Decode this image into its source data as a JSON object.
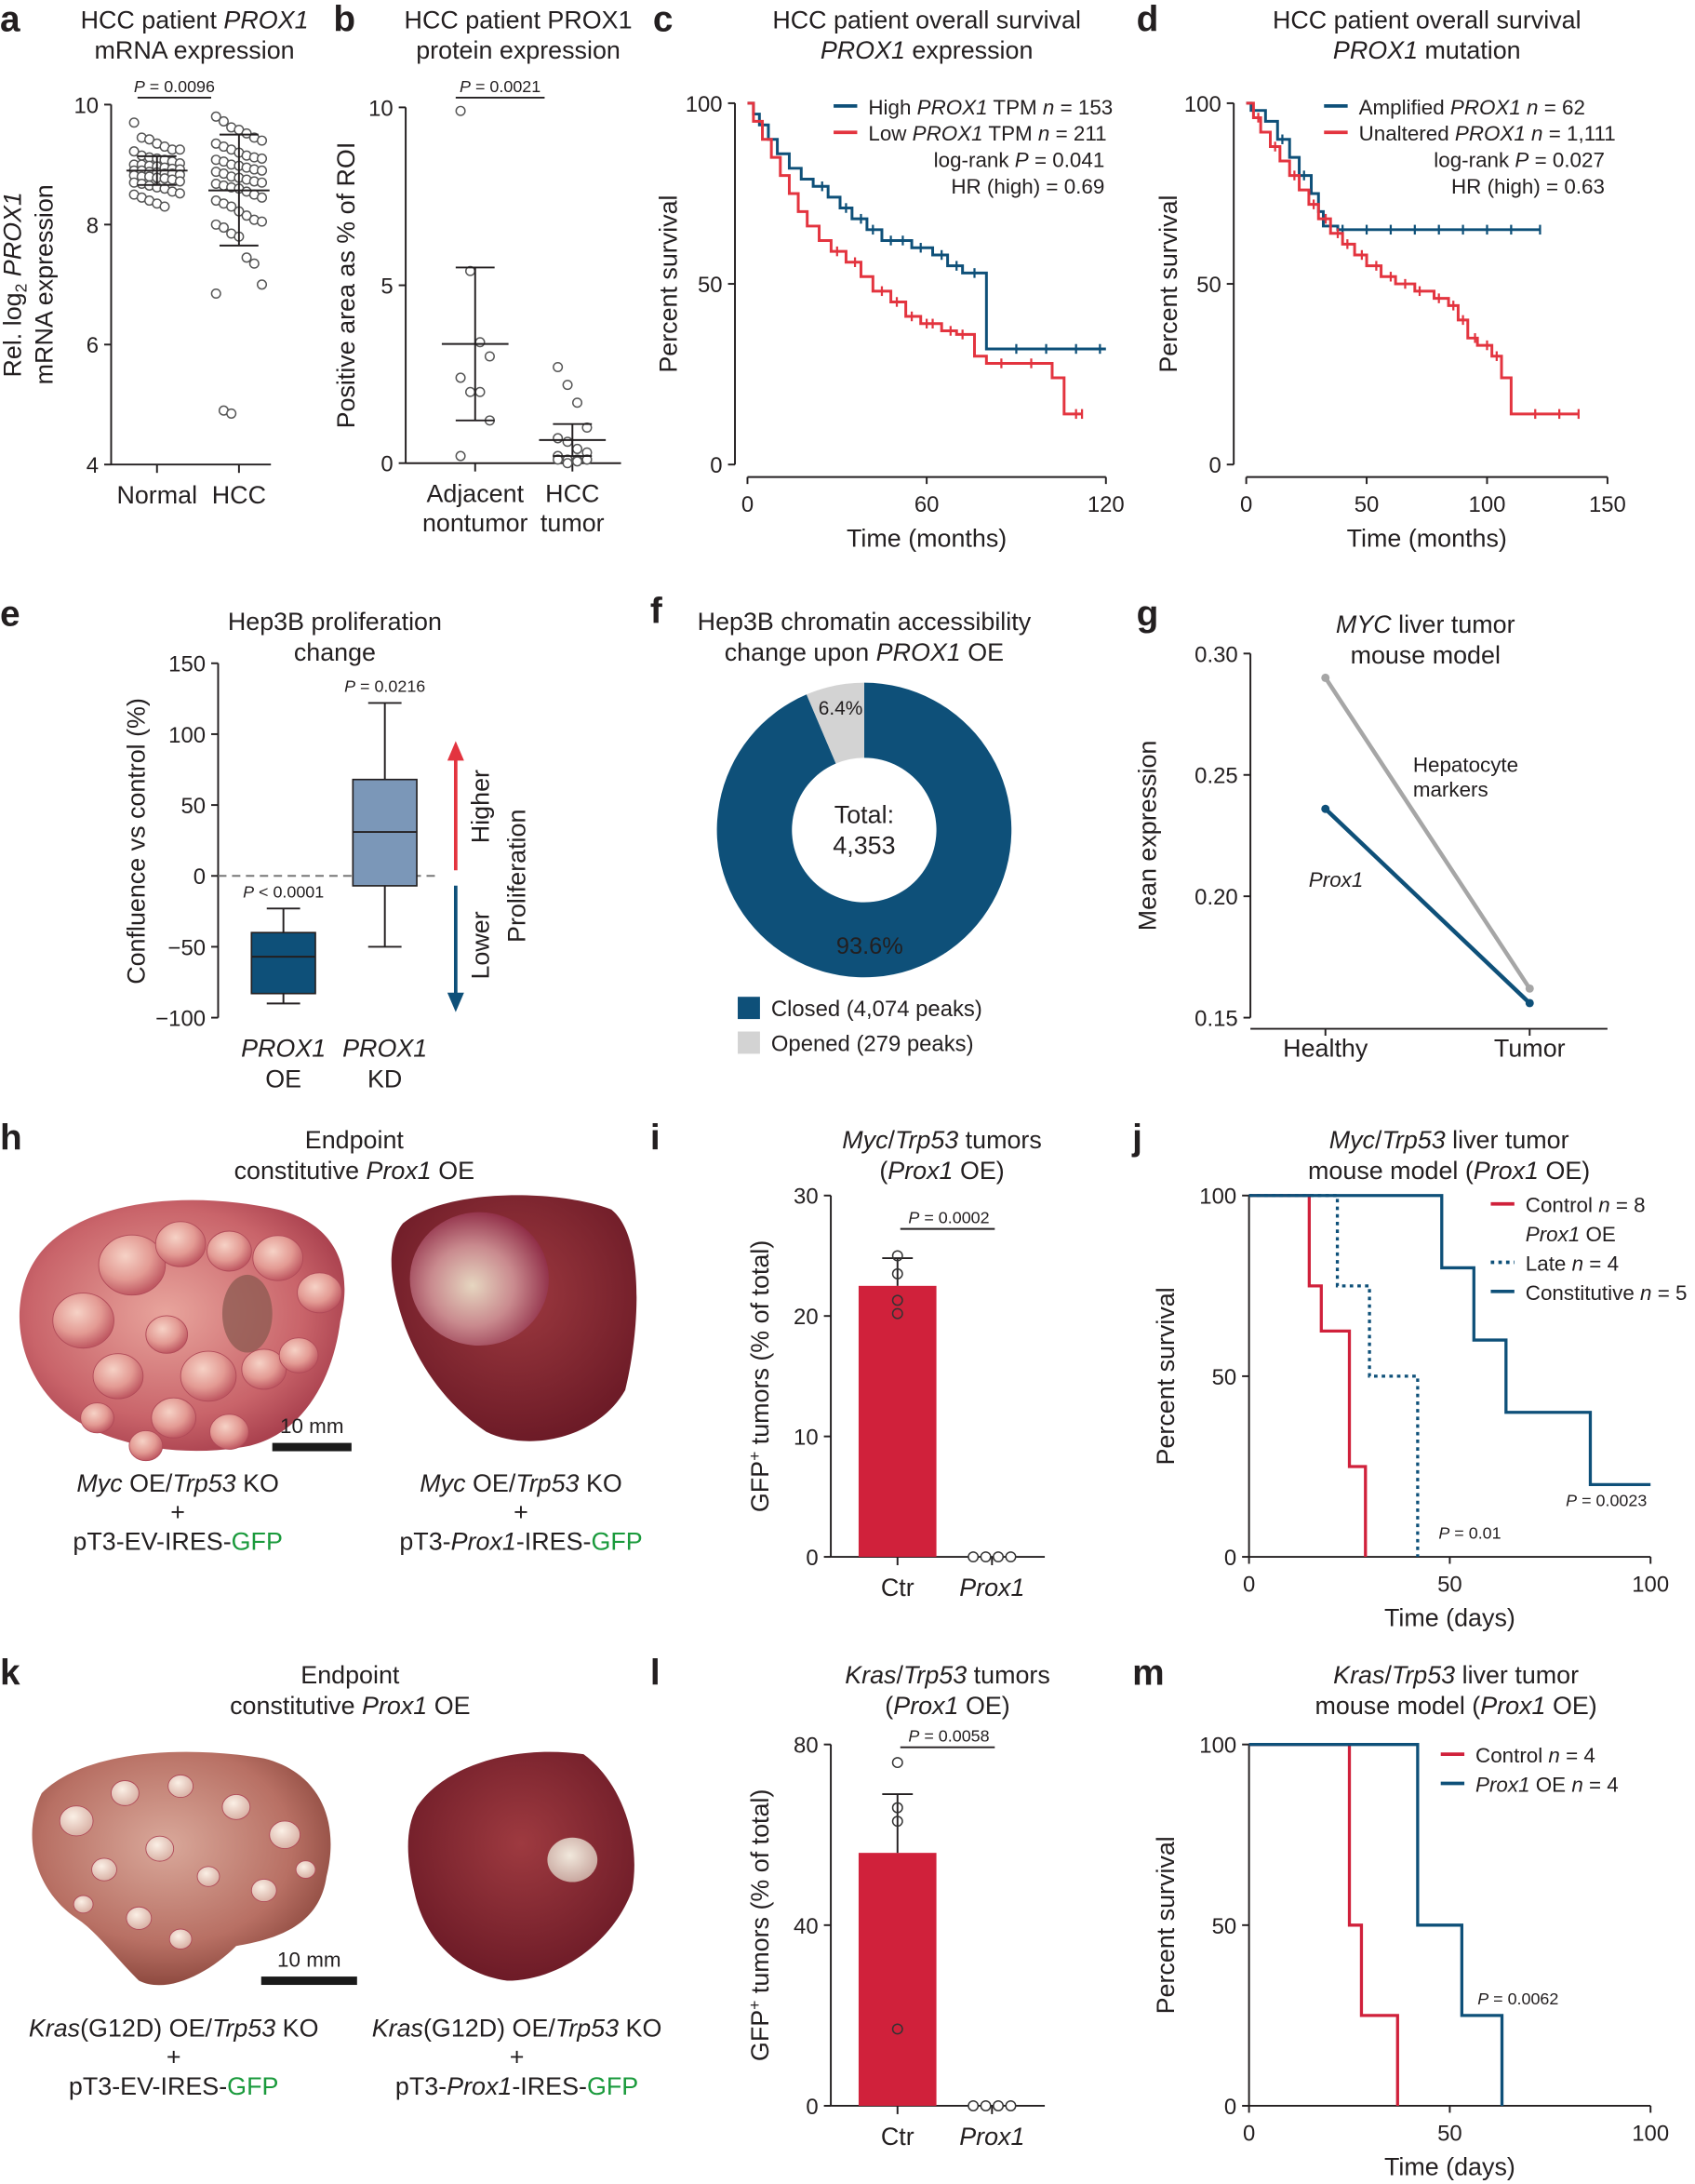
{
  "colors": {
    "navy": "#0e5079",
    "red_c": "#e3343f",
    "red": "#d0213b",
    "kd_box": "#7b97b8",
    "grey_line": "#a6a6a6",
    "opened": "#d3d3d3",
    "gfp_green": "#1a9a3c"
  },
  "panels": {
    "h": {
      "letter": "h",
      "title": [
        "Endpoint",
        "constitutive *Prox1* OE"
      ],
      "scale_bar": "10 mm",
      "left_label": [
        "*Myc* OE/*Trp53* KO",
        "+",
        "pT3-EV-IRES-{GFP}"
      ],
      "right_label": [
        "*Myc* OE/*Trp53* KO",
        "+",
        "pT3-*Prox1*-IRES-{GFP}"
      ]
    },
    "k": {
      "letter": "k",
      "title": [
        "Endpoint",
        "constitutive *Prox1* OE"
      ],
      "scale_bar": "10 mm",
      "left_label": [
        "*Kras*(G12D) OE/*Trp53* KO",
        "+",
        "pT3-EV-IRES-{GFP}"
      ],
      "right_label": [
        "*Kras*(G12D) OE/*Trp53* KO",
        "+",
        "pT3-*Prox1*-IRES-{GFP}"
      ]
    }
  },
  "chart_data": [
    {
      "panel": "a",
      "type": "scatter",
      "title": [
        "HCC patient *PROX1*",
        "mRNA expression"
      ],
      "ylabel": [
        "Rel. log~2~ *PROX1*",
        "mRNA expression"
      ],
      "ylim": [
        4,
        10
      ],
      "yticks": [
        4,
        6,
        8,
        10
      ],
      "categories": [
        "Normal",
        "HCC"
      ],
      "pvalue": "*P* = 0.0096",
      "groups": [
        {
          "name": "Normal",
          "mean": 8.9,
          "sd": [
            8.66,
            9.14
          ],
          "values": [
            9.7,
            9.45,
            9.42,
            9.35,
            9.3,
            9.25,
            9.25,
            9.22,
            9.15,
            9.12,
            9.1,
            9.08,
            9.05,
            9.02,
            9.0,
            9.0,
            8.98,
            8.97,
            8.95,
            8.93,
            8.92,
            8.9,
            8.9,
            8.88,
            8.87,
            8.85,
            8.85,
            8.83,
            8.82,
            8.8,
            8.8,
            8.78,
            8.77,
            8.75,
            8.72,
            8.7,
            8.68,
            8.65,
            8.62,
            8.6,
            8.55,
            8.52,
            8.5,
            8.45,
            8.4,
            8.35,
            8.3
          ]
        },
        {
          "name": "HCC",
          "mean": 8.57,
          "sd": [
            7.65,
            9.5
          ],
          "values": [
            9.8,
            9.72,
            9.62,
            9.58,
            9.52,
            9.45,
            9.4,
            9.35,
            9.3,
            9.25,
            9.2,
            9.15,
            9.12,
            9.1,
            9.08,
            9.05,
            9.0,
            8.98,
            8.95,
            8.92,
            8.9,
            8.88,
            8.85,
            8.8,
            8.78,
            8.75,
            8.72,
            8.7,
            8.68,
            8.65,
            8.62,
            8.6,
            8.55,
            8.5,
            8.45,
            8.4,
            8.35,
            8.3,
            8.22,
            8.15,
            8.08,
            8.05,
            8.0,
            7.95,
            7.85,
            7.8,
            7.45,
            7.35,
            7.0,
            6.85,
            4.9,
            4.85
          ]
        }
      ]
    },
    {
      "panel": "b",
      "type": "scatter",
      "title": [
        "HCC patient PROX1",
        "protein expression"
      ],
      "ylabel": [
        "Positive area as % of ROI"
      ],
      "ylim": [
        0,
        10
      ],
      "yticks": [
        0,
        5,
        10
      ],
      "categories": [
        [
          "Adjacent",
          "nontumor"
        ],
        [
          "HCC",
          "tumor"
        ]
      ],
      "pvalue": "*P* = 0.0021",
      "groups": [
        {
          "name": "Adjacent nontumor",
          "mean": 3.35,
          "sd": [
            1.2,
            5.5
          ],
          "values": [
            9.9,
            5.4,
            3.4,
            3.0,
            2.4,
            2.0,
            2.0,
            1.2,
            0.2
          ]
        },
        {
          "name": "HCC tumor",
          "mean": 0.65,
          "sd": [
            0.2,
            1.1
          ],
          "values": [
            2.7,
            2.2,
            1.7,
            1.0,
            0.7,
            0.6,
            0.4,
            0.3,
            0.2,
            0.1,
            0.1,
            0.1,
            0.1,
            0.0,
            0.05,
            0.1
          ]
        }
      ]
    },
    {
      "panel": "c",
      "type": "line",
      "subtype": "kaplan-meier",
      "title": [
        "HCC patient overall survival",
        "*PROX1* expression"
      ],
      "xlabel": "Time (months)",
      "ylabel": "Percent survival",
      "xlim": [
        0,
        120
      ],
      "ylim": [
        0,
        100
      ],
      "xticks": [
        0,
        60,
        120
      ],
      "yticks": [
        0,
        50,
        100
      ],
      "stats": [
        "log-rank *P* = 0.041",
        "HR (high) = 0.69"
      ],
      "series": [
        {
          "name": "High *PROX1* TPM *n* = 153",
          "color": "#0e5079",
          "end": 120,
          "steps": [
            [
              2,
              97
            ],
            [
              4,
              94
            ],
            [
              7,
              90
            ],
            [
              10,
              86
            ],
            [
              14,
              82
            ],
            [
              18,
              79
            ],
            [
              22,
              77
            ],
            [
              27,
              74
            ],
            [
              31,
              71
            ],
            [
              35,
              68
            ],
            [
              40,
              65
            ],
            [
              45,
              62
            ],
            [
              55,
              60
            ],
            [
              62,
              58
            ],
            [
              67,
              55
            ],
            [
              72,
              53
            ],
            [
              80,
              32
            ]
          ],
          "censored": [
            25,
            33,
            38,
            42,
            48,
            52,
            58,
            65,
            70,
            76,
            90,
            100,
            110,
            118
          ]
        },
        {
          "name": "Low *PROX1* TPM *n* = 211",
          "color": "#e3343f",
          "end": 112,
          "steps": [
            [
              2,
              95
            ],
            [
              5,
              90
            ],
            [
              8,
              85
            ],
            [
              11,
              80
            ],
            [
              14,
              75
            ],
            [
              17,
              70
            ],
            [
              20,
              66
            ],
            [
              24,
              62
            ],
            [
              28,
              59
            ],
            [
              33,
              56
            ],
            [
              38,
              52
            ],
            [
              42,
              48
            ],
            [
              48,
              45
            ],
            [
              53,
              41
            ],
            [
              58,
              39
            ],
            [
              65,
              37
            ],
            [
              70,
              36
            ],
            [
              76,
              30
            ],
            [
              80,
              28
            ],
            [
              102,
              24
            ],
            [
              106,
              14
            ]
          ],
          "censored": [
            30,
            36,
            45,
            50,
            55,
            60,
            62,
            68,
            72,
            85,
            95,
            110,
            112
          ]
        }
      ]
    },
    {
      "panel": "d",
      "type": "line",
      "subtype": "kaplan-meier",
      "title": [
        "HCC patient overall survival",
        "*PROX1* mutation"
      ],
      "xlabel": "Time (months)",
      "ylabel": "Percent survival",
      "xlim": [
        0,
        150
      ],
      "ylim": [
        0,
        100
      ],
      "xticks": [
        0,
        50,
        100,
        150
      ],
      "yticks": [
        0,
        50,
        100
      ],
      "stats": [
        "log-rank *P* = 0.027",
        "HR (high) = 0.63"
      ],
      "series": [
        {
          "name": "Amplified *PROX1* *n* = 62",
          "color": "#0e5079",
          "end": 122,
          "steps": [
            [
              2,
              98
            ],
            [
              8,
              95
            ],
            [
              13,
              90
            ],
            [
              18,
              85
            ],
            [
              22,
              80
            ],
            [
              27,
              75
            ],
            [
              30,
              70
            ],
            [
              32,
              66
            ],
            [
              38,
              65
            ]
          ],
          "censored": [
            15,
            24,
            40,
            50,
            60,
            70,
            80,
            90,
            100,
            110,
            122
          ]
        },
        {
          "name": "Unaltered *PROX1* *n* = 1,111",
          "color": "#e3343f",
          "end": 138,
          "steps": [
            [
              3,
              96
            ],
            [
              6,
              92
            ],
            [
              10,
              88
            ],
            [
              14,
              84
            ],
            [
              18,
              80
            ],
            [
              22,
              76
            ],
            [
              26,
              72
            ],
            [
              30,
              68
            ],
            [
              35,
              64
            ],
            [
              40,
              61
            ],
            [
              45,
              58
            ],
            [
              50,
              55
            ],
            [
              56,
              52
            ],
            [
              62,
              50
            ],
            [
              70,
              48
            ],
            [
              78,
              46
            ],
            [
              84,
              44
            ],
            [
              88,
              40
            ],
            [
              92,
              35
            ],
            [
              96,
              33
            ],
            [
              102,
              30
            ],
            [
              106,
              24
            ],
            [
              110,
              14
            ]
          ],
          "censored": [
            5,
            12,
            20,
            28,
            33,
            38,
            42,
            48,
            54,
            60,
            66,
            72,
            80,
            86,
            90,
            95,
            100,
            104,
            120,
            130,
            138
          ]
        }
      ]
    },
    {
      "panel": "e",
      "type": "bar",
      "subtype": "boxplot",
      "title": [
        "Hep3B proliferation",
        "change"
      ],
      "ylabel": "Confluence vs control (%)",
      "ylim": [
        -100,
        150
      ],
      "yticks": [
        -100,
        -50,
        0,
        50,
        100,
        150
      ],
      "arrows": {
        "up": "Higher",
        "down": "Lower",
        "axis": "Proliferation"
      },
      "boxes": [
        {
          "label": [
            "*PROX1*",
            "OE"
          ],
          "min": -90,
          "q1": -83,
          "median": -57,
          "q3": -40,
          "max": -23,
          "pvalue": "*P* < 0.0001",
          "color": "#0e5079"
        },
        {
          "label": [
            "*PROX1*",
            "KD"
          ],
          "min": -50,
          "q1": -7,
          "median": 31,
          "q3": 68,
          "max": 122,
          "pvalue": "*P* = 0.0216",
          "color": "#7b97b8"
        }
      ]
    },
    {
      "panel": "f",
      "type": "pie",
      "subtype": "donut",
      "title": [
        "Hep3B chromatin accessibility",
        "change upon *PROX1* OE"
      ],
      "center": [
        "Total:",
        "4,353"
      ],
      "slices": [
        {
          "label": "Closed (4,074 peaks)",
          "value": 93.6,
          "text": "93.6%",
          "color": "#0e5079"
        },
        {
          "label": "Opened (279 peaks)",
          "value": 6.4,
          "text": "6.4%",
          "color": "#d3d3d3"
        }
      ]
    },
    {
      "panel": "g",
      "type": "line",
      "title": [
        "*MYC* liver tumor",
        "mouse model"
      ],
      "ylabel": "Mean expression",
      "ylim": [
        0.15,
        0.3
      ],
      "yticks": [
        0.15,
        0.2,
        0.25,
        0.3
      ],
      "categories": [
        "Healthy",
        "Tumor"
      ],
      "series": [
        {
          "name": [
            "Hepatocyte",
            "markers"
          ],
          "values": [
            0.29,
            0.162
          ],
          "color": "#a6a6a6"
        },
        {
          "name": [
            "*Prox1*"
          ],
          "values": [
            0.236,
            0.156
          ],
          "color": "#0e5079"
        }
      ]
    },
    {
      "panel": "i",
      "type": "bar",
      "title": [
        "*Myc*/*Trp53* tumors",
        "(*Prox1* OE)"
      ],
      "ylabel": "GFP^+^ tumors (% of total)",
      "ylim": [
        0,
        30
      ],
      "yticks": [
        0,
        10,
        20,
        30
      ],
      "categories": [
        "Ctr",
        "*Prox1*"
      ],
      "pvalue": "*P* = 0.0002",
      "bars": [
        {
          "value": 22.5,
          "err": 24.8,
          "points": [
            25,
            23.5,
            21.3,
            20.2
          ],
          "color": "#d0213b"
        },
        {
          "value": 0,
          "err": 0,
          "points": [
            0,
            0,
            0,
            0
          ],
          "color": "#d0213b"
        }
      ]
    },
    {
      "panel": "j",
      "type": "line",
      "subtype": "kaplan-meier",
      "title": [
        "*Myc*/*Trp53* liver tumor",
        "mouse model (*Prox1* OE)"
      ],
      "xlabel": "Time (days)",
      "ylabel": "Percent survival",
      "xlim": [
        0,
        100
      ],
      "ylim": [
        0,
        100
      ],
      "xticks": [
        0,
        50,
        100
      ],
      "yticks": [
        0,
        50,
        100
      ],
      "legend_subhead": "*Prox1* OE",
      "annotations": [
        {
          "text": "*P* = 0.01",
          "x": 55,
          "y": 5
        },
        {
          "text": "*P* = 0.0023",
          "x": 89,
          "y": 14
        }
      ],
      "series": [
        {
          "name": "Control *n* = 8",
          "color": "#d0213b",
          "dash": false,
          "end": 29,
          "steps": [
            [
              15,
              75
            ],
            [
              18,
              62.5
            ],
            [
              25,
              25
            ],
            [
              29,
              0
            ]
          ]
        },
        {
          "name": "Late *n* = 4",
          "color": "#0e5079",
          "dash": true,
          "end": 42,
          "steps": [
            [
              22,
              75
            ],
            [
              30,
              50
            ],
            [
              42,
              0
            ]
          ]
        },
        {
          "name": "Constitutive *n* = 5",
          "color": "#0e5079",
          "dash": false,
          "end": 100,
          "steps": [
            [
              48,
              80
            ],
            [
              56,
              60
            ],
            [
              64,
              40
            ],
            [
              85,
              20
            ]
          ]
        }
      ]
    },
    {
      "panel": "l",
      "type": "bar",
      "title": [
        "*Kras*/*Trp53* tumors",
        "(*Prox1* OE)"
      ],
      "ylabel": "GFP^+^ tumors (% of total)",
      "ylim": [
        0,
        80
      ],
      "yticks": [
        0,
        40,
        80
      ],
      "categories": [
        "Ctr",
        "*Prox1*"
      ],
      "pvalue": "*P* = 0.0058",
      "bars": [
        {
          "value": 56,
          "err": 69,
          "points": [
            76,
            66,
            63,
            17
          ],
          "color": "#d0213b"
        },
        {
          "value": 0,
          "err": 0,
          "points": [
            0,
            0,
            0,
            0
          ],
          "color": "#d0213b"
        }
      ]
    },
    {
      "panel": "m",
      "type": "line",
      "subtype": "kaplan-meier",
      "title": [
        "*Kras*/*Trp53* liver tumor",
        "mouse model (*Prox1* OE)"
      ],
      "xlabel": "Time (days)",
      "ylabel": "Percent survival",
      "xlim": [
        0,
        100
      ],
      "ylim": [
        0,
        100
      ],
      "xticks": [
        0,
        50,
        100
      ],
      "yticks": [
        0,
        50,
        100
      ],
      "annotations": [
        {
          "text": "*P* = 0.0062",
          "x": 67,
          "y": 28
        }
      ],
      "series": [
        {
          "name": "Control *n* = 4",
          "color": "#d0213b",
          "dash": false,
          "end": 37,
          "steps": [
            [
              25,
              50
            ],
            [
              28,
              25
            ],
            [
              37,
              0
            ]
          ]
        },
        {
          "name": "*Prox1* OE *n* = 4",
          "color": "#0e5079",
          "dash": false,
          "end": 63,
          "steps": [
            [
              42,
              50
            ],
            [
              53,
              25
            ],
            [
              63,
              0
            ]
          ]
        }
      ]
    }
  ]
}
